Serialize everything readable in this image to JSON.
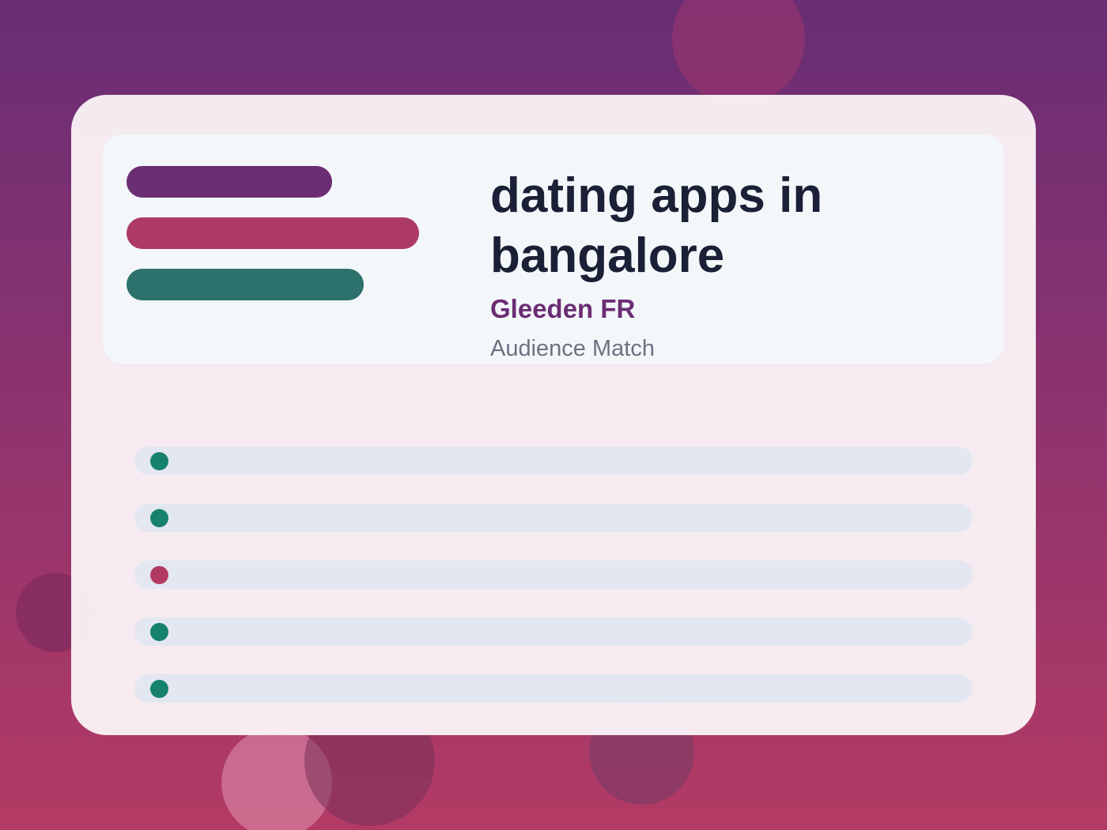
{
  "header": {
    "title": "dating apps in bangalore",
    "brand": "Gleeden FR",
    "subtitle": "Audience Match"
  }
}
